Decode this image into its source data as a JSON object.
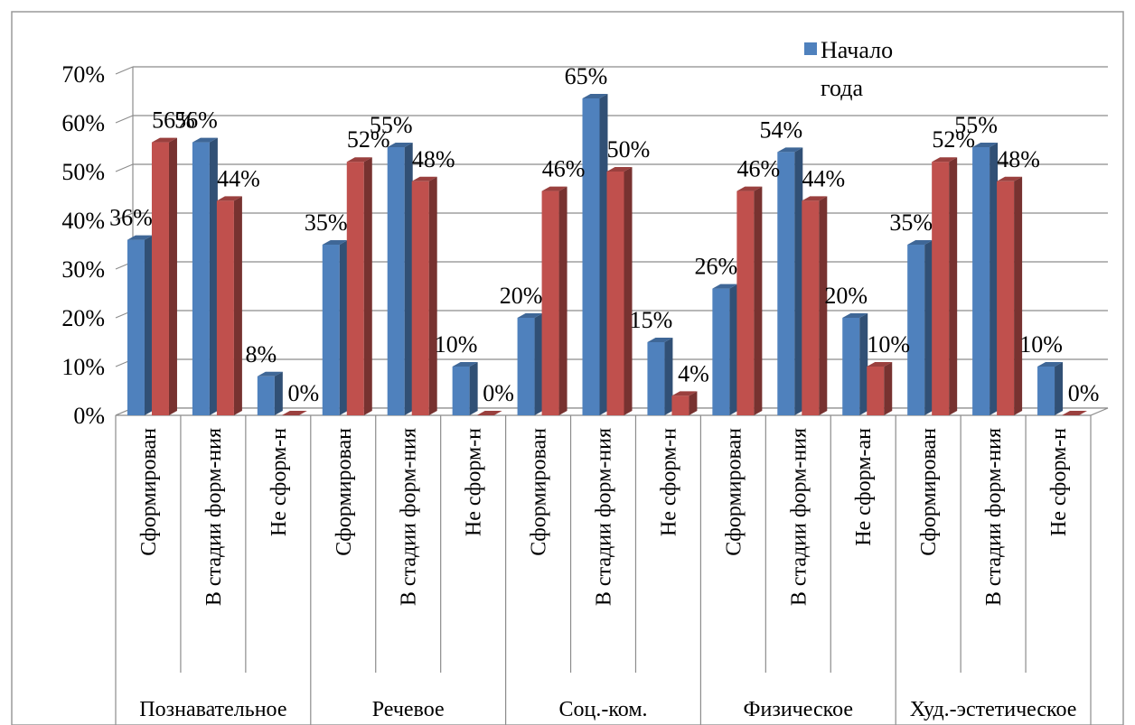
{
  "chart_data": {
    "type": "bar",
    "title": "",
    "xlabel": "",
    "ylabel": "",
    "ylim": [
      0,
      70
    ],
    "y_ticks": [
      "0%",
      "10%",
      "20%",
      "30%",
      "40%",
      "50%",
      "60%",
      "70%"
    ],
    "categories": [
      "Сформирован",
      "В стадии форм-ния",
      "Не сформ-н",
      "Сформирован",
      "В стадии форм-ния",
      "Не сформ-н",
      "Сформирован",
      "В стадии форм-ния",
      "Не сформ-н",
      "Сформирован",
      "В стадии форм-ния",
      "Не сформ-ан",
      "Сформирован",
      "В стадии форм-ния",
      "Не сформ-н"
    ],
    "groups": [
      "Познавательное",
      "Речевое",
      "Соц.-ком.",
      "Физическое",
      "Худ.-эстетическое"
    ],
    "series": [
      {
        "name": "Начало года",
        "color": "#4F81BD",
        "values": [
          36,
          56,
          8,
          35,
          55,
          10,
          20,
          65,
          15,
          26,
          54,
          20,
          35,
          55,
          10
        ],
        "labels": [
          "36%",
          "56%",
          "8%",
          "35%",
          "55%",
          "10%",
          "20%",
          "65%",
          "15%",
          "26%",
          "54%",
          "20%",
          "35%",
          "55%",
          "10%"
        ]
      },
      {
        "name": "",
        "color": "#C0504D",
        "values": [
          56,
          44,
          0,
          52,
          48,
          0,
          46,
          50,
          4,
          46,
          44,
          10,
          52,
          48,
          0
        ],
        "labels": [
          "56%",
          "44%",
          "0%",
          "52%",
          "48%",
          "0%",
          "46%",
          "50%",
          "4%",
          "46%",
          "44%",
          "10%",
          "52%",
          "48%",
          "0%"
        ]
      }
    ],
    "legend": {
      "position": "top-right",
      "line1": "Начало",
      "line2": "года"
    },
    "grid": true
  }
}
